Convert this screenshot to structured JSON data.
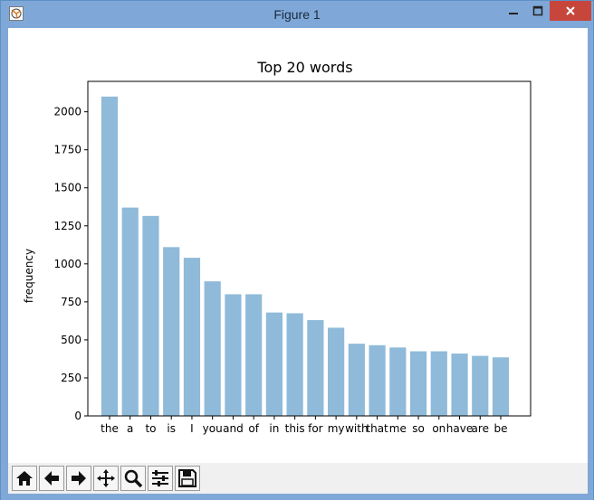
{
  "window": {
    "title": "Figure 1",
    "frame_color": "#7fa8d8",
    "close_color": "#c7463c"
  },
  "toolbar": {
    "tools": [
      {
        "icon": "home-icon"
      },
      {
        "icon": "back-arrow-icon"
      },
      {
        "icon": "forward-arrow-icon"
      },
      {
        "icon": "pan-icon"
      },
      {
        "icon": "zoom-icon"
      },
      {
        "icon": "configure-subplots-icon"
      },
      {
        "icon": "save-icon"
      }
    ]
  },
  "chart_data": {
    "type": "bar",
    "title": "Top 20 words",
    "xlabel": "",
    "ylabel": "frequency",
    "categories": [
      "the",
      "a",
      "to",
      "is",
      "I",
      "you",
      "and",
      "of",
      "in",
      "this",
      "for",
      "my",
      "with",
      "that",
      "me",
      "so",
      "on",
      "have",
      "are",
      "be"
    ],
    "values": [
      2100,
      1370,
      1315,
      1110,
      1040,
      885,
      800,
      800,
      680,
      675,
      630,
      580,
      475,
      465,
      450,
      425,
      425,
      410,
      395,
      385
    ],
    "ylim": [
      0,
      2200
    ],
    "yticks": [
      0,
      250,
      500,
      750,
      1000,
      1250,
      1500,
      1750,
      2000
    ],
    "grid": false,
    "bar_color": "#8fbad9"
  }
}
